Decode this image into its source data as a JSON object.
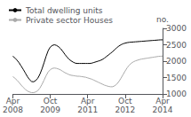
{
  "chart_data": {
    "type": "line",
    "ylabel": "no.",
    "categories": [
      "Apr\n2008",
      null,
      null,
      null,
      null,
      null,
      null,
      null,
      null,
      null,
      null,
      null,
      null,
      null,
      null,
      null,
      null,
      null,
      "Oct\n2009",
      null,
      null,
      null,
      null,
      null,
      null,
      null,
      null,
      null,
      null,
      null,
      null,
      null,
      null,
      null,
      null,
      null,
      "Apr\n2011",
      null,
      null,
      null,
      null,
      null,
      null,
      null,
      null,
      null,
      null,
      null,
      null,
      null,
      null,
      null,
      null,
      null,
      "Oct\n2012",
      null,
      null,
      null,
      null,
      null,
      null,
      null,
      null,
      null,
      null,
      null,
      null,
      null,
      null,
      null,
      null,
      null,
      "Apr\n2014"
    ],
    "series": [
      {
        "name": "Total dwelling units",
        "color": "#000000",
        "values": [
          2150,
          2100,
          2030,
          1950,
          1850,
          1750,
          1640,
          1530,
          1440,
          1380,
          1370,
          1410,
          1480,
          1600,
          1760,
          1950,
          2150,
          2320,
          2430,
          2480,
          2500,
          2480,
          2440,
          2380,
          2300,
          2210,
          2130,
          2060,
          2010,
          1970,
          1940,
          1930,
          1930,
          1930,
          1930,
          1930,
          1930,
          1930,
          1940,
          1960,
          1980,
          2000,
          2020,
          2050,
          2090,
          2140,
          2190,
          2240,
          2290,
          2350,
          2410,
          2460,
          2500,
          2530,
          2550,
          2565,
          2575,
          2580,
          2585,
          2590,
          2595,
          2600,
          2605,
          2610,
          2615,
          2620,
          2625,
          2630,
          2635,
          2640,
          2645,
          2650,
          2650
        ]
      },
      {
        "name": "Private sector Houses",
        "color": "#aaaaaa",
        "values": [
          1530,
          1480,
          1420,
          1350,
          1270,
          1200,
          1140,
          1090,
          1060,
          1040,
          1040,
          1060,
          1100,
          1180,
          1290,
          1420,
          1560,
          1670,
          1740,
          1780,
          1790,
          1780,
          1760,
          1730,
          1690,
          1650,
          1620,
          1590,
          1570,
          1560,
          1550,
          1540,
          1540,
          1530,
          1520,
          1510,
          1490,
          1470,
          1450,
          1420,
          1390,
          1360,
          1330,
          1300,
          1270,
          1250,
          1230,
          1220,
          1220,
          1250,
          1300,
          1380,
          1480,
          1590,
          1700,
          1800,
          1880,
          1940,
          1980,
          2010,
          2030,
          2050,
          2065,
          2075,
          2085,
          2095,
          2105,
          2115,
          2125,
          2135,
          2145,
          2150,
          2155
        ]
      }
    ],
    "ylim": [
      1000,
      3000
    ],
    "yticks": [
      1000,
      1500,
      2000,
      2500,
      3000
    ],
    "grid": false,
    "legend": "upper left"
  }
}
